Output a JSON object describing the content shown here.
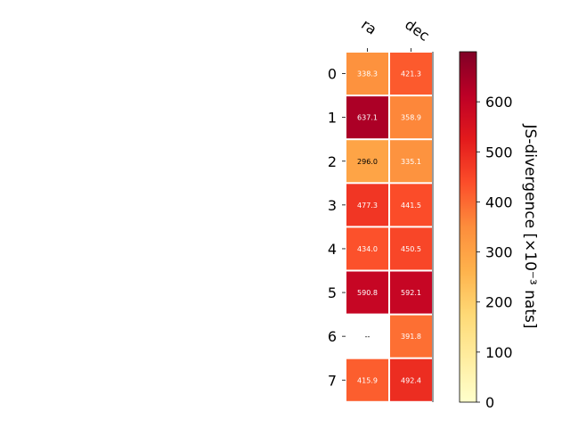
{
  "chart_data": {
    "type": "heatmap",
    "columns": [
      "ra",
      "dec"
    ],
    "rows": [
      "0",
      "1",
      "2",
      "3",
      "4",
      "5",
      "6",
      "7"
    ],
    "values": [
      [
        338.3,
        421.3
      ],
      [
        637.1,
        358.9
      ],
      [
        296.0,
        335.1
      ],
      [
        477.3,
        441.5
      ],
      [
        434.0,
        450.5
      ],
      [
        590.8,
        592.1
      ],
      [
        null,
        391.8
      ],
      [
        415.9,
        492.4
      ]
    ],
    "cell_labels": [
      [
        "338.3",
        "421.3"
      ],
      [
        "637.1",
        "358.9"
      ],
      [
        "296.0",
        "335.1"
      ],
      [
        "477.3",
        "441.5"
      ],
      [
        "434.0",
        "450.5"
      ],
      [
        "590.8",
        "592.1"
      ],
      [
        "--",
        "391.8"
      ],
      [
        "415.9",
        "492.4"
      ]
    ],
    "colormap": "YlOrRd",
    "colorbar": {
      "label": "JS-divergence [×10⁻³ nats]",
      "vmin": 0,
      "vmax": 700,
      "ticks": [
        0,
        100,
        200,
        300,
        400,
        500,
        600
      ],
      "tick_labels": [
        "0",
        "100",
        "200",
        "300",
        "400",
        "500",
        "600"
      ]
    },
    "colors": {
      "missing_cell_text": "#000000",
      "light_text": "#ffffff",
      "dark_text": "#000000"
    }
  }
}
